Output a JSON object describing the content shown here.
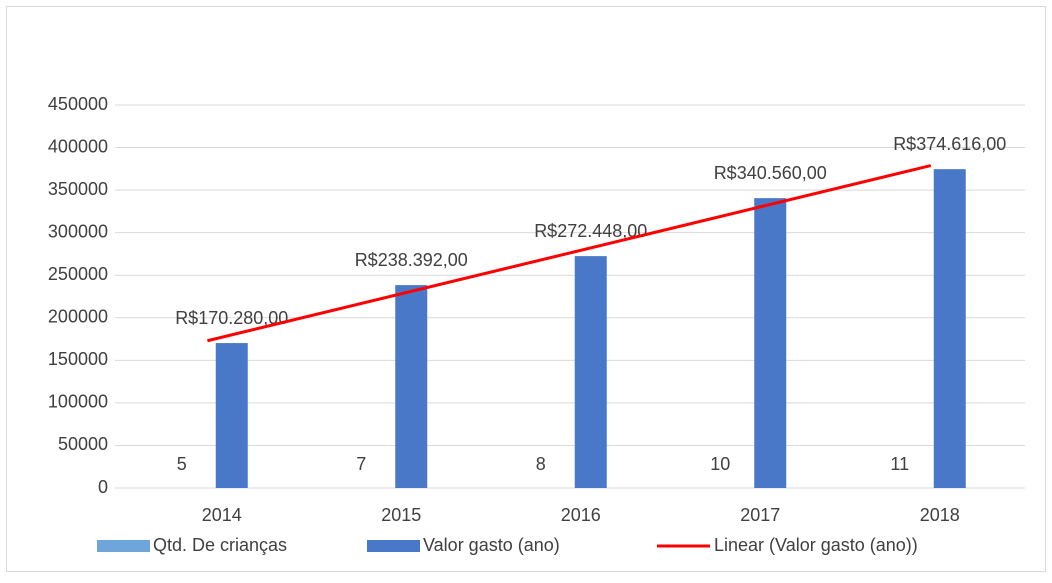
{
  "chart_data": {
    "type": "bar",
    "categories": [
      "2014",
      "2015",
      "2016",
      "2017",
      "2018"
    ],
    "series": [
      {
        "name": "Qtd. De crianças",
        "color": "#6ea6dc",
        "values": [
          5,
          7,
          8,
          10,
          11
        ]
      },
      {
        "name": "Valor gasto (ano)",
        "color": "#4a78c9",
        "values": [
          170280,
          238392,
          272448,
          340560,
          374616
        ],
        "value_labels": [
          "R$170.280,00",
          "R$238.392,00",
          "R$272.448,00",
          "R$340.560,00",
          "R$374.616,00"
        ]
      }
    ],
    "trendline": {
      "name": "Linear (Valor gasto (ano))",
      "color": "#ff0000",
      "series": 1,
      "kind": "linear"
    },
    "ylim": [
      0,
      450000
    ],
    "yticks": [
      0,
      50000,
      100000,
      150000,
      200000,
      250000,
      300000,
      350000,
      400000,
      450000
    ],
    "grid": true,
    "legend": "bottom"
  }
}
